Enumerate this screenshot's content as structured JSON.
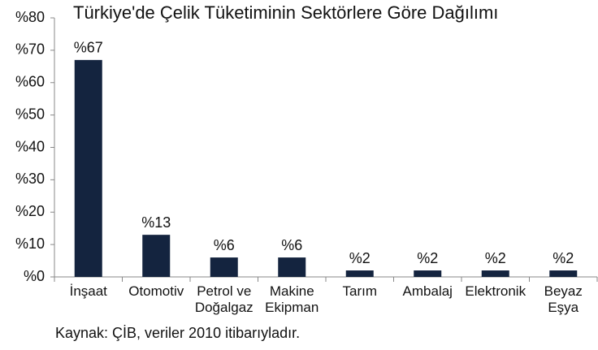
{
  "chart_data": {
    "type": "bar",
    "title": "Türkiye'de Çelik Tüketiminin Sektörlere Göre Dağılımı",
    "source": "Kaynak: ÇİB, veriler 2010 itibarıyladır.",
    "categories": [
      "İnşaat",
      "Otomotiv",
      "Petrol ve\nDoğalgaz",
      "Makine\nEkipman",
      "Tarım",
      "Ambalaj",
      "Elektronik",
      "Beyaz\nEşya"
    ],
    "values": [
      67,
      13,
      6,
      6,
      2,
      2,
      2,
      2
    ],
    "value_labels": [
      "%67",
      "%13",
      "%6",
      "%6",
      "%2",
      "%2",
      "%2",
      "%2"
    ],
    "color": "#14243f",
    "ylim": [
      0,
      80
    ],
    "yticks": [
      {
        "value": 0,
        "label": "%0"
      },
      {
        "value": 10,
        "label": "%10"
      },
      {
        "value": 20,
        "label": "%20"
      },
      {
        "value": 30,
        "label": "%30"
      },
      {
        "value": 40,
        "label": "%40"
      },
      {
        "value": 50,
        "label": "%50"
      },
      {
        "value": 60,
        "label": "%60"
      },
      {
        "value": 70,
        "label": "%70"
      },
      {
        "value": 80,
        "label": "%80"
      }
    ],
    "grid": false
  }
}
